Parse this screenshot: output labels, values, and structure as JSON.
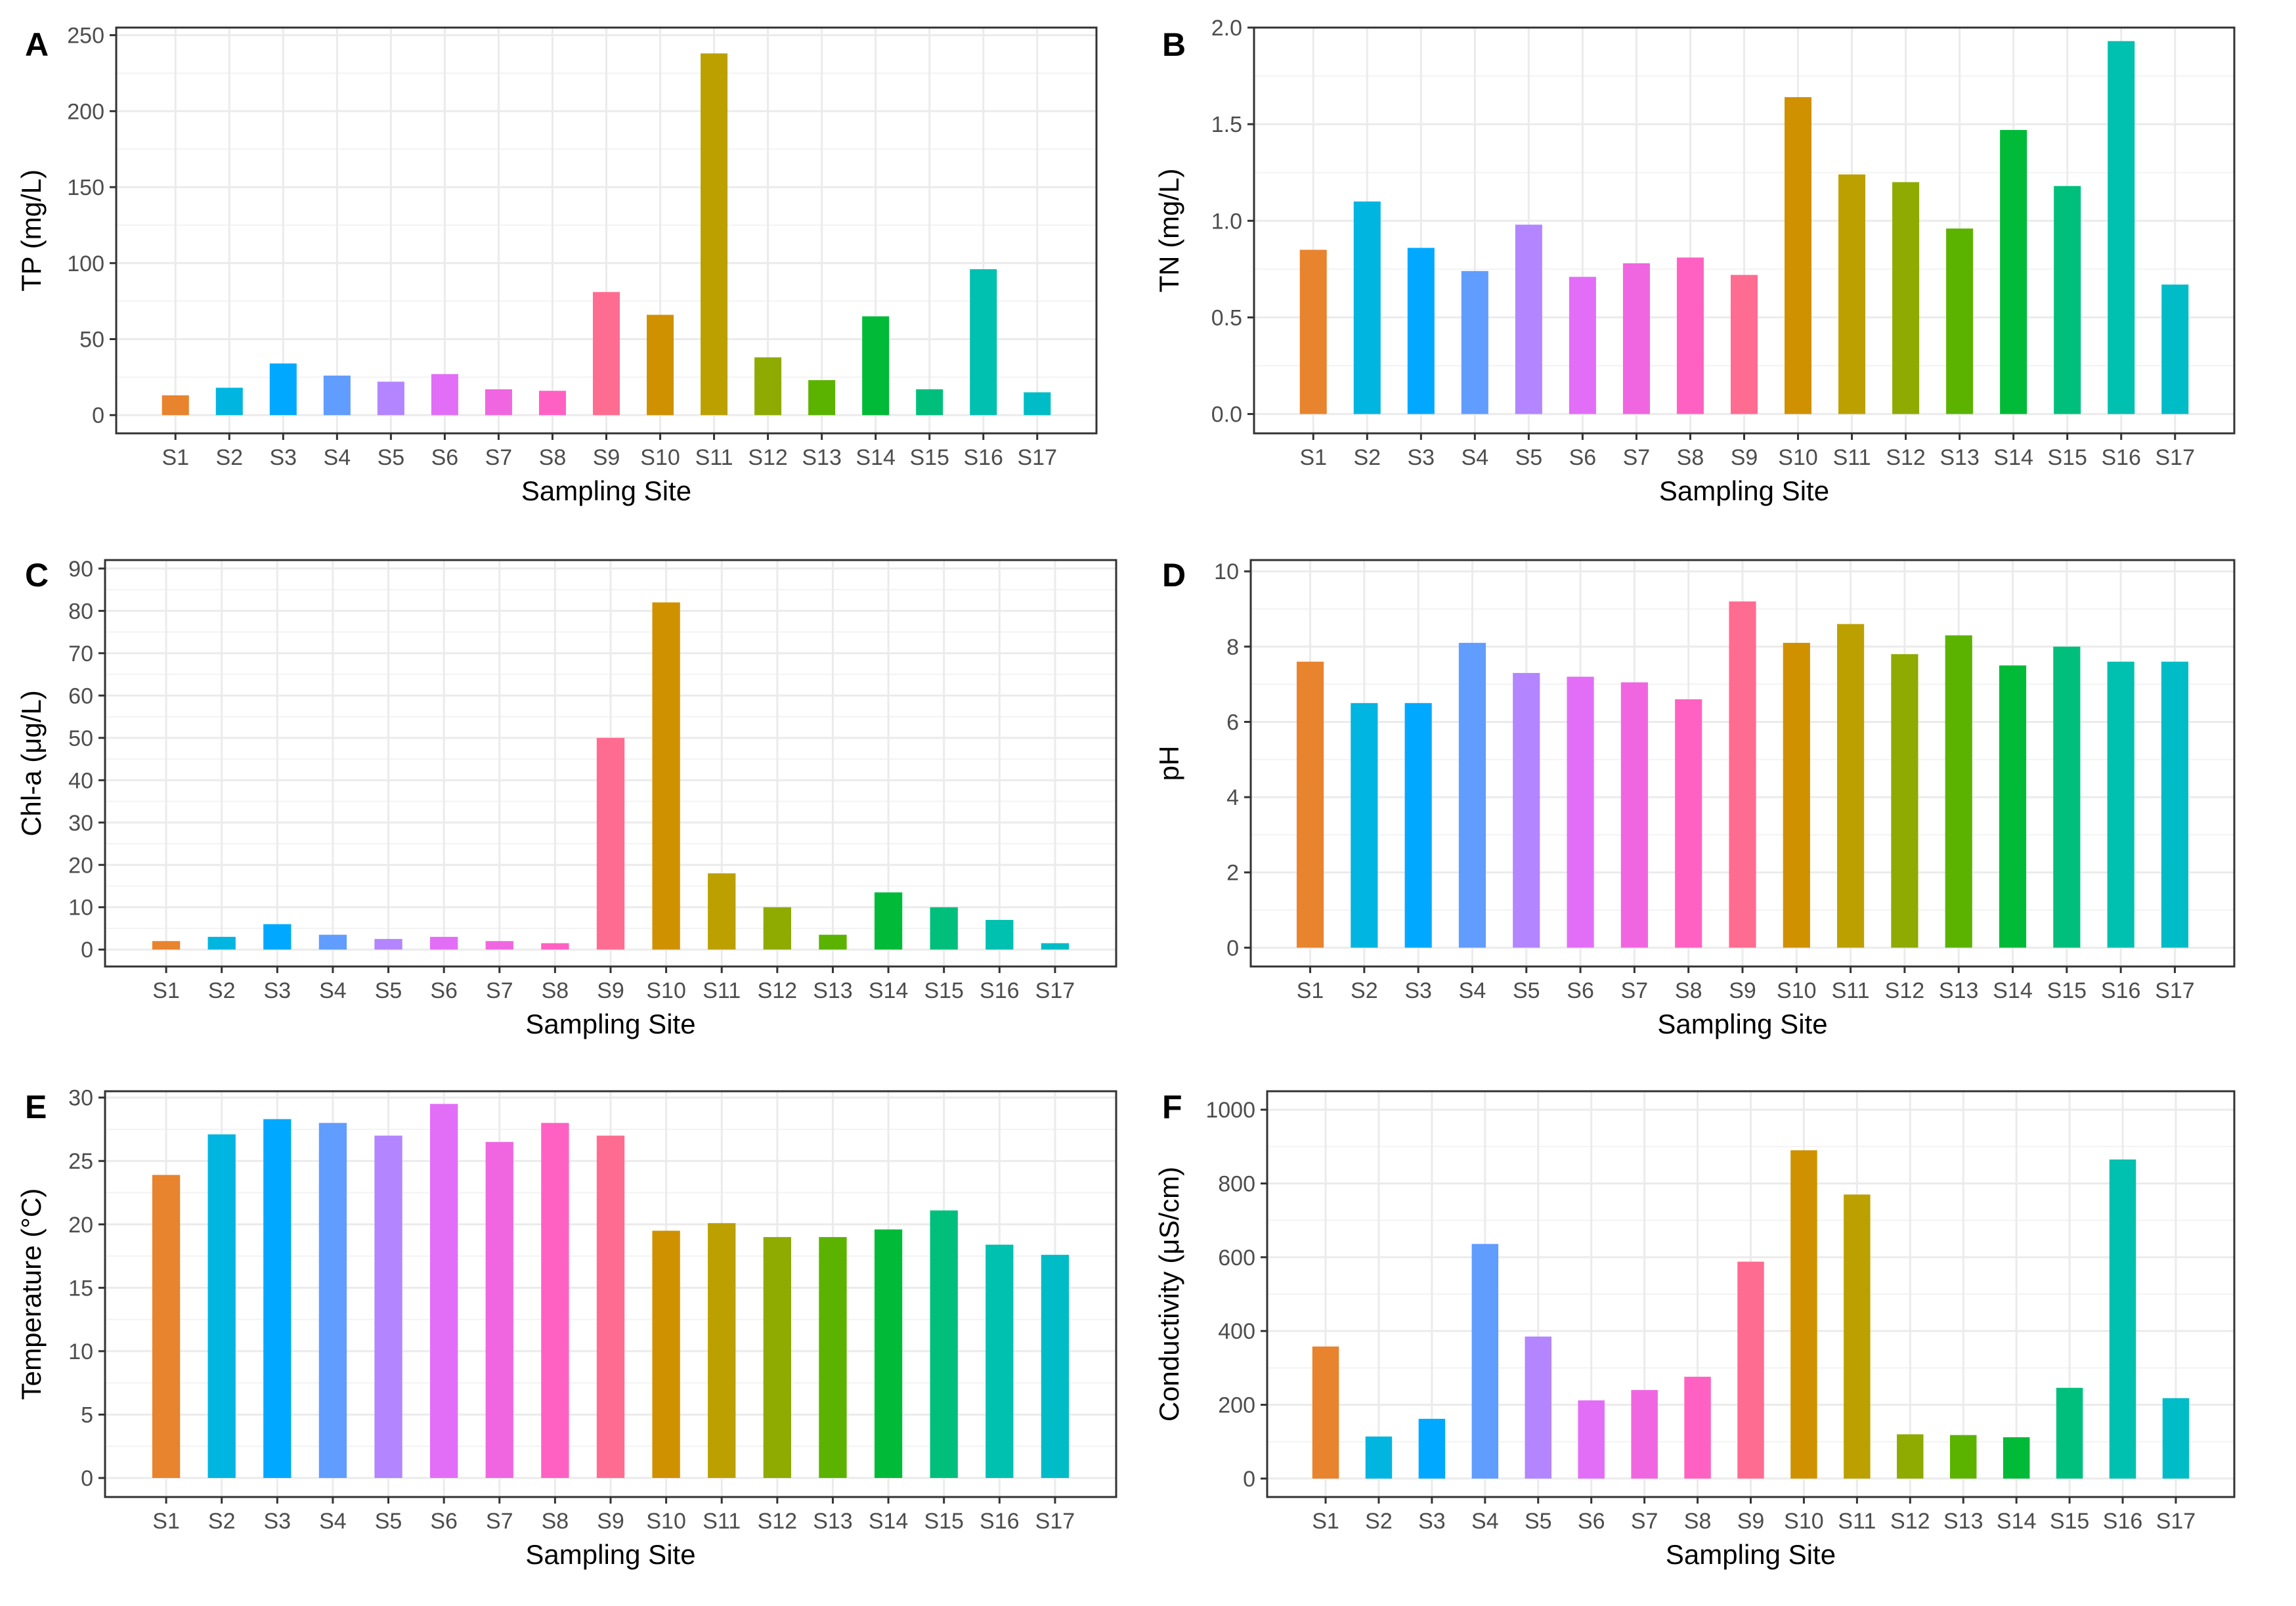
{
  "chart_data": [
    {
      "type": "bar",
      "panel": "A",
      "xlabel": "Sampling Site",
      "ylabel": "TP (mg/L)",
      "ylim": [
        -12,
        255
      ],
      "yticks": [
        0,
        50,
        100,
        150,
        200,
        250
      ],
      "categories": [
        "S1",
        "S2",
        "S3",
        "S4",
        "S5",
        "S6",
        "S7",
        "S8",
        "S9",
        "S10",
        "S11",
        "S12",
        "S13",
        "S14",
        "S15",
        "S16",
        "S17"
      ],
      "values": [
        13,
        18,
        34,
        26,
        22,
        27,
        17,
        16,
        81,
        66,
        238,
        38,
        23,
        65,
        17,
        96,
        15
      ]
    },
    {
      "type": "bar",
      "panel": "B",
      "xlabel": "Sampling Site",
      "ylabel": "TN (mg/L)",
      "ylim": [
        -0.1,
        2.0
      ],
      "yticks": [
        0.0,
        0.5,
        1.0,
        1.5,
        2.0
      ],
      "categories": [
        "S1",
        "S2",
        "S3",
        "S4",
        "S5",
        "S6",
        "S7",
        "S8",
        "S9",
        "S10",
        "S11",
        "S12",
        "S13",
        "S14",
        "S15",
        "S16",
        "S17"
      ],
      "values": [
        0.85,
        1.1,
        0.86,
        0.74,
        0.98,
        0.71,
        0.78,
        0.81,
        0.72,
        1.64,
        1.24,
        1.2,
        0.96,
        1.47,
        1.18,
        1.93,
        0.67
      ]
    },
    {
      "type": "bar",
      "panel": "C",
      "xlabel": "Sampling Site",
      "ylabel": "Chl-a (μg/L)",
      "ylim": [
        -4,
        92
      ],
      "yticks": [
        0,
        10,
        20,
        30,
        40,
        50,
        60,
        70,
        80,
        90
      ],
      "categories": [
        "S1",
        "S2",
        "S3",
        "S4",
        "S5",
        "S6",
        "S7",
        "S8",
        "S9",
        "S10",
        "S11",
        "S12",
        "S13",
        "S14",
        "S15",
        "S16",
        "S17"
      ],
      "values": [
        2,
        3,
        6,
        3.5,
        2.5,
        3,
        2,
        1.5,
        50,
        82,
        18,
        10,
        3.5,
        13.5,
        10,
        7,
        1.5
      ]
    },
    {
      "type": "bar",
      "panel": "D",
      "xlabel": "Sampling Site",
      "ylabel": "pH",
      "ylim": [
        -0.5,
        10.3
      ],
      "yticks": [
        0,
        2,
        4,
        6,
        8,
        10
      ],
      "categories": [
        "S1",
        "S2",
        "S3",
        "S4",
        "S5",
        "S6",
        "S7",
        "S8",
        "S9",
        "S10",
        "S11",
        "S12",
        "S13",
        "S14",
        "S15",
        "S16",
        "S17"
      ],
      "values": [
        7.6,
        6.5,
        6.5,
        8.1,
        7.3,
        7.2,
        7.05,
        6.6,
        9.2,
        8.1,
        8.6,
        7.8,
        8.3,
        7.5,
        8.0,
        7.6,
        7.6
      ]
    },
    {
      "type": "bar",
      "panel": "E",
      "xlabel": "Sampling Site",
      "ylabel": "Temperature (°C)",
      "ylim": [
        -1.5,
        30.5
      ],
      "yticks": [
        0,
        5,
        10,
        15,
        20,
        25,
        30
      ],
      "categories": [
        "S1",
        "S2",
        "S3",
        "S4",
        "S5",
        "S6",
        "S7",
        "S8",
        "S9",
        "S10",
        "S11",
        "S12",
        "S13",
        "S14",
        "S15",
        "S16",
        "S17"
      ],
      "values": [
        23.9,
        27.1,
        28.3,
        28,
        27,
        29.5,
        26.5,
        28,
        27,
        19.5,
        20.1,
        19,
        19,
        19.6,
        21.1,
        18.4,
        17.6
      ]
    },
    {
      "type": "bar",
      "panel": "F",
      "xlabel": "Sampling Site",
      "ylabel": "Conductivity (μS/cm)",
      "ylim": [
        -50,
        1050
      ],
      "yticks": [
        0,
        200,
        400,
        600,
        800,
        1000
      ],
      "categories": [
        "S1",
        "S2",
        "S3",
        "S4",
        "S5",
        "S6",
        "S7",
        "S8",
        "S9",
        "S10",
        "S11",
        "S12",
        "S13",
        "S14",
        "S15",
        "S16",
        "S17"
      ],
      "values": [
        358,
        114,
        162,
        636,
        385,
        212,
        240,
        276,
        588,
        890,
        770,
        120,
        118,
        112,
        246,
        865,
        218
      ]
    }
  ],
  "colors": [
    "#E8832E",
    "#00B5E0",
    "#00A9FF",
    "#619CFF",
    "#B385FF",
    "#E26EF7",
    "#F066E0",
    "#FF61C3",
    "#FF6C91",
    "#CF9100",
    "#BCA000",
    "#8FAA00",
    "#5BB300",
    "#00BA38",
    "#00BF7D",
    "#00C0AF",
    "#00BCC7"
  ]
}
